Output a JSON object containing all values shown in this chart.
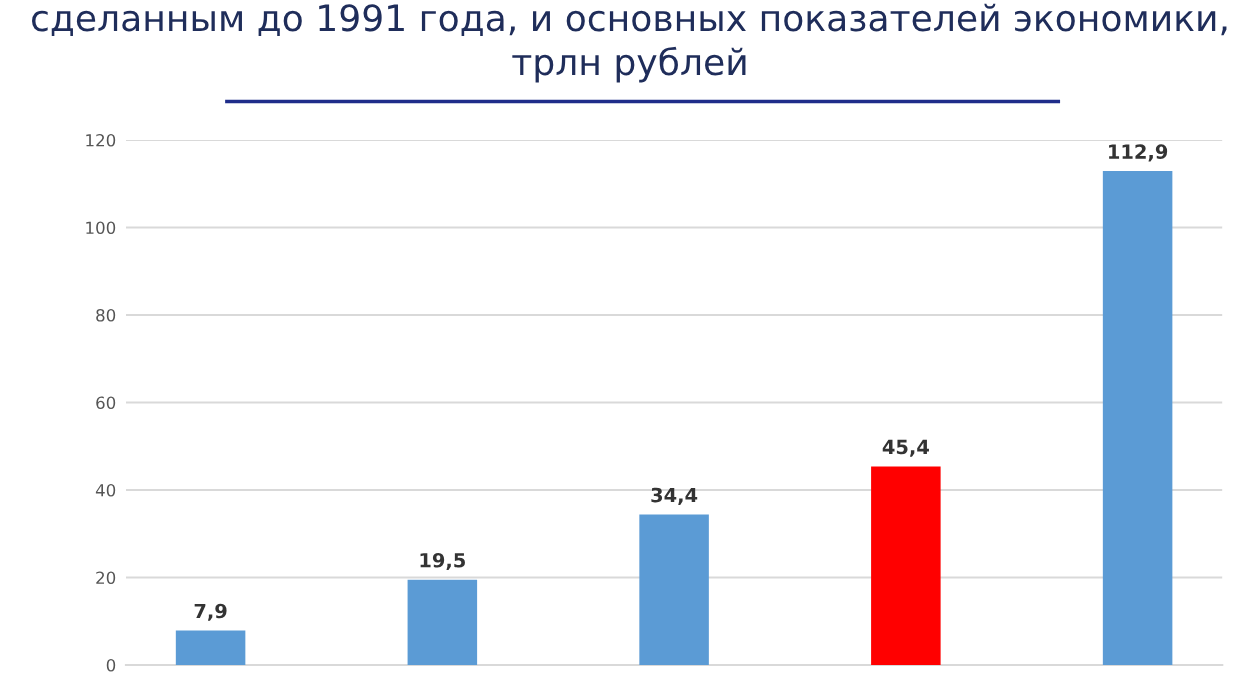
{
  "chart_data": {
    "type": "bar",
    "title": "сделанным до 1991 года, и основных показателей экономики,\nтрлн рублей",
    "categories": [
      null,
      null,
      null,
      null,
      null
    ],
    "values": [
      7.9,
      19.5,
      34.4,
      45.4,
      112.9
    ],
    "colors": [
      "#5b9bd5",
      "#5b9bd5",
      "#5b9bd5",
      "#ff0000",
      "#5b9bd5"
    ],
    "value_labels": [
      "7,9",
      "19,5",
      "34,4",
      "45,4",
      "112,9"
    ],
    "ylim": [
      0,
      120
    ],
    "yticks": [
      0,
      20,
      40,
      60,
      80,
      100,
      120
    ],
    "grid": "y"
  }
}
